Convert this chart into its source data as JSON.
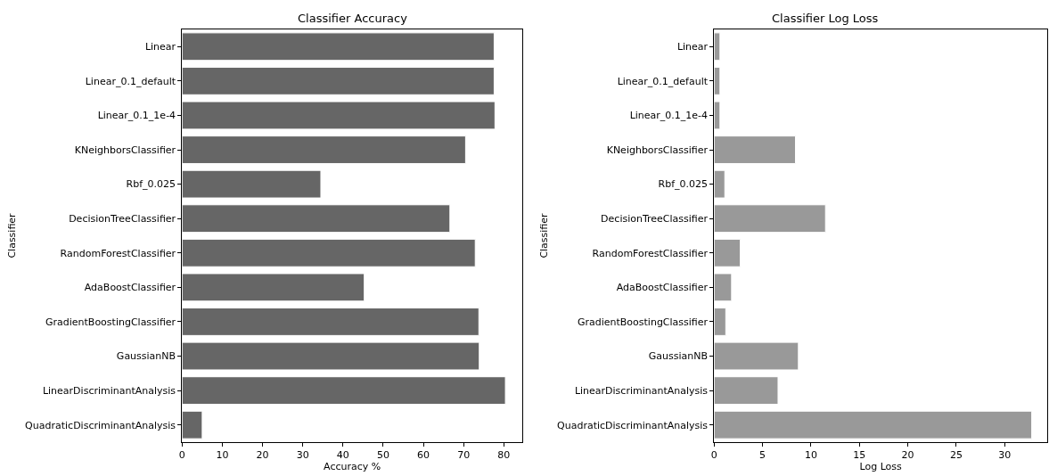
{
  "chart_data": [
    {
      "type": "bar",
      "orientation": "horizontal",
      "title": "Classifier Accuracy",
      "xlabel": "Accuracy %",
      "ylabel": "Classifier",
      "categories": [
        "Linear",
        "Linear_0.1_default",
        "Linear_0.1_1e-4",
        "KNeighborsClassifier",
        "Rbf_0.025",
        "DecisionTreeClassifier",
        "RandomForestClassifier",
        "AdaBoostClassifier",
        "GradientBoostingClassifier",
        "GaussianNB",
        "LinearDiscriminantAnalysis",
        "QuadraticDiscriminantAnalysis"
      ],
      "values": [
        77.6,
        77.6,
        77.8,
        70.5,
        34.5,
        66.6,
        72.9,
        45.3,
        73.8,
        73.9,
        80.4,
        5.0
      ],
      "color": "#666666",
      "xlim": [
        0,
        84.6
      ],
      "xticks": [
        0,
        10,
        20,
        30,
        40,
        50,
        60,
        70,
        80
      ]
    },
    {
      "type": "bar",
      "orientation": "horizontal",
      "title": "Classifier Log Loss",
      "xlabel": "Log Loss",
      "ylabel": "Classifier",
      "categories": [
        "Linear",
        "Linear_0.1_default",
        "Linear_0.1_1e-4",
        "KNeighborsClassifier",
        "Rbf_0.025",
        "DecisionTreeClassifier",
        "RandomForestClassifier",
        "AdaBoostClassifier",
        "GradientBoostingClassifier",
        "GaussianNB",
        "LinearDiscriminantAnalysis",
        "QuadraticDiscriminantAnalysis"
      ],
      "values": [
        0.6,
        0.6,
        0.6,
        8.4,
        1.1,
        11.5,
        2.7,
        1.8,
        1.2,
        8.7,
        6.6,
        32.8
      ],
      "color": "#999999",
      "xlim": [
        0,
        34.4
      ],
      "xticks": [
        0,
        5,
        10,
        15,
        20,
        25,
        30
      ]
    }
  ]
}
